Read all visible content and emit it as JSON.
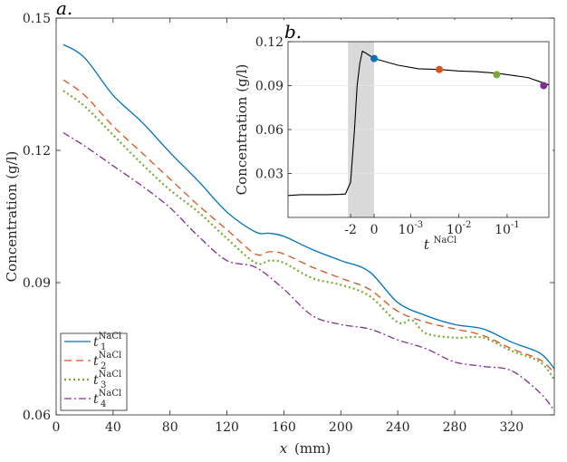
{
  "chart_data": [
    {
      "panel": "a.",
      "type": "line",
      "xlabel_var": "x",
      "xlabel_unit": "(mm)",
      "ylabel": "Concentration (g/l)",
      "xlim": [
        0,
        350
      ],
      "ylim": [
        0.06,
        0.15
      ],
      "xticks": [
        0,
        40,
        80,
        120,
        160,
        200,
        240,
        280,
        320
      ],
      "yticks": [
        0.06,
        0.09,
        0.12,
        0.15
      ],
      "ytick_labels": [
        "0.06",
        "0.09",
        "0.12",
        "0.15"
      ],
      "legend_position": "bottom-left",
      "series": [
        {
          "name": "t",
          "sub": "1",
          "sup": "NaCl",
          "color": "#0072BD",
          "dash": "",
          "x": [
            5,
            20,
            40,
            60,
            80,
            100,
            120,
            140,
            150,
            160,
            180,
            200,
            220,
            240,
            260,
            280,
            300,
            320,
            340,
            350
          ],
          "y": [
            0.144,
            0.141,
            0.1325,
            0.1265,
            0.1195,
            0.113,
            0.106,
            0.1015,
            0.1012,
            0.1005,
            0.0975,
            0.095,
            0.0925,
            0.0855,
            0.0825,
            0.0805,
            0.0795,
            0.0765,
            0.074,
            0.0705
          ]
        },
        {
          "name": "t",
          "sub": "2",
          "sup": "NaCl",
          "color": "#D95319",
          "dash": "8,5",
          "x": [
            5,
            20,
            40,
            60,
            80,
            100,
            120,
            140,
            150,
            160,
            180,
            200,
            220,
            240,
            260,
            280,
            300,
            320,
            340,
            350
          ],
          "y": [
            0.136,
            0.1325,
            0.1255,
            0.1195,
            0.1135,
            0.1075,
            0.102,
            0.0965,
            0.097,
            0.0965,
            0.0935,
            0.091,
            0.0885,
            0.0835,
            0.081,
            0.0795,
            0.078,
            0.075,
            0.0725,
            0.0695
          ]
        },
        {
          "name": "t",
          "sub": "3",
          "sup": "NaCl",
          "color": "#77AC30",
          "dash": "2,3",
          "x": [
            5,
            20,
            40,
            60,
            80,
            100,
            120,
            140,
            150,
            160,
            180,
            200,
            220,
            240,
            250,
            260,
            280,
            300,
            320,
            340,
            350
          ],
          "y": [
            0.1335,
            0.13,
            0.1235,
            0.117,
            0.111,
            0.106,
            0.1,
            0.0945,
            0.095,
            0.0945,
            0.091,
            0.0895,
            0.087,
            0.081,
            0.0815,
            0.0785,
            0.0775,
            0.0775,
            0.0745,
            0.072,
            0.068
          ]
        },
        {
          "name": "t",
          "sub": "4",
          "sup": "NaCl",
          "color": "#7E2F8E",
          "dash": "8,3,2,3",
          "x": [
            5,
            20,
            40,
            60,
            80,
            100,
            120,
            140,
            160,
            180,
            200,
            220,
            240,
            260,
            280,
            300,
            320,
            340,
            350
          ],
          "y": [
            0.124,
            0.121,
            0.1165,
            0.112,
            0.107,
            0.1005,
            0.095,
            0.0935,
            0.0885,
            0.0825,
            0.0805,
            0.0795,
            0.077,
            0.075,
            0.072,
            0.071,
            0.07,
            0.065,
            0.061
          ]
        }
      ]
    },
    {
      "panel": "b.",
      "type": "line",
      "xlabel_var": "t",
      "xlabel_sup": "NaCl",
      "ylabel": "Concentration (g/l)",
      "ylim": [
        0,
        0.12
      ],
      "yticks": [
        0.03,
        0.06,
        0.09,
        0.12
      ],
      "ytick_labels": [
        "0.03",
        "0.06",
        "0.09",
        "0.12"
      ],
      "xtick_labels": [
        {
          "base": "-2",
          "exp": ""
        },
        {
          "base": "0",
          "exp": ""
        },
        {
          "base": "10",
          "exp": "-3"
        },
        {
          "base": "10",
          "exp": "-2"
        },
        {
          "base": "10",
          "exp": "-1"
        }
      ],
      "xtick_u": [
        0.24,
        0.33,
        0.47,
        0.655,
        0.84
      ],
      "shaded_u": [
        0.23,
        0.33
      ],
      "u_range": [
        0,
        1
      ],
      "curve_u": [
        0,
        0.05,
        0.1,
        0.15,
        0.2,
        0.22,
        0.24,
        0.255,
        0.265,
        0.275,
        0.285,
        0.3,
        0.33,
        0.36,
        0.42,
        0.5,
        0.58,
        0.65,
        0.72,
        0.8,
        0.86,
        0.92,
        0.96,
        1
      ],
      "curve_y": [
        0.015,
        0.0155,
        0.0155,
        0.0155,
        0.0157,
        0.016,
        0.024,
        0.06,
        0.09,
        0.105,
        0.1135,
        0.112,
        0.1085,
        0.107,
        0.104,
        0.1015,
        0.101,
        0.1,
        0.0995,
        0.0985,
        0.097,
        0.0955,
        0.093,
        0.0905
      ],
      "markers": [
        {
          "u": 0.33,
          "y": 0.1085,
          "color": "#0072BD"
        },
        {
          "u": 0.58,
          "y": 0.101,
          "color": "#D95319"
        },
        {
          "u": 0.8,
          "y": 0.0975,
          "color": "#77AC30"
        },
        {
          "u": 0.98,
          "y": 0.09,
          "color": "#7E2F8E"
        }
      ]
    }
  ]
}
